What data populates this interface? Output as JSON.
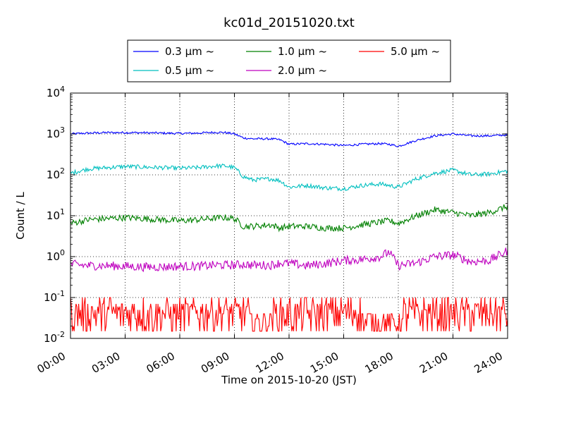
{
  "chart_data": {
    "type": "line",
    "title": "kc01d_20151020.txt",
    "xlabel": "Time on 2015-10-20 (JST)",
    "ylabel": "Count / L",
    "y_scale": "log",
    "xlim_hours": [
      0,
      24
    ],
    "ylim": [
      0.01,
      10000
    ],
    "x_tick_labels": [
      "00:00",
      "03:00",
      "06:00",
      "09:00",
      "12:00",
      "15:00",
      "18:00",
      "21:00",
      "24:00"
    ],
    "y_tick_labels": [
      {
        "base": "10",
        "exp": "-2"
      },
      {
        "base": "10",
        "exp": "-1"
      },
      {
        "base": "10",
        "exp": "0"
      },
      {
        "base": "10",
        "exp": "1"
      },
      {
        "base": "10",
        "exp": "2"
      },
      {
        "base": "10",
        "exp": "3"
      },
      {
        "base": "10",
        "exp": "4"
      }
    ],
    "grid": true,
    "legend_position": "top-center",
    "series": [
      {
        "name": "0.3 μm ~",
        "color": "#0000ff",
        "hours": [
          0,
          1,
          2,
          3,
          4,
          5,
          6,
          7,
          8,
          8.5,
          9,
          9.5,
          10,
          11,
          11.5,
          12,
          13,
          14,
          15,
          16,
          17,
          17.5,
          18,
          19,
          20,
          21,
          22,
          23,
          24
        ],
        "values": [
          1000,
          1050,
          1080,
          1080,
          1070,
          1050,
          1030,
          1050,
          1100,
          1080,
          1000,
          800,
          760,
          760,
          720,
          560,
          580,
          560,
          520,
          560,
          580,
          560,
          500,
          700,
          900,
          1000,
          900,
          900,
          950
        ]
      },
      {
        "name": "0.5 μm ~",
        "color": "#00bfbf",
        "hours": [
          0,
          1,
          2,
          3,
          4,
          5,
          6,
          7,
          8,
          8.5,
          9,
          9.5,
          10,
          11,
          11.5,
          12,
          13,
          14,
          15,
          16,
          17,
          17.5,
          18,
          19,
          20,
          21,
          22,
          23,
          24
        ],
        "values": [
          110,
          140,
          150,
          160,
          155,
          150,
          145,
          150,
          165,
          165,
          150,
          90,
          75,
          80,
          72,
          50,
          55,
          48,
          46,
          55,
          60,
          55,
          50,
          80,
          110,
          130,
          100,
          105,
          125
        ]
      },
      {
        "name": "1.0 μm ~",
        "color": "#008000",
        "hours": [
          0,
          1,
          2,
          3,
          4,
          5,
          6,
          7,
          8,
          8.5,
          9,
          9.5,
          10,
          11,
          11.5,
          12,
          13,
          14,
          15,
          16,
          17,
          17.5,
          18,
          19,
          20,
          21,
          22,
          23,
          24
        ],
        "values": [
          6.5,
          8,
          8.5,
          9,
          8.5,
          8,
          7.5,
          8,
          8.8,
          9,
          8.5,
          5.5,
          5.5,
          6,
          5,
          5.5,
          5.5,
          5,
          5,
          6,
          7,
          7.5,
          6.5,
          10,
          14,
          12,
          10,
          12,
          17
        ]
      },
      {
        "name": "2.0 μm ~",
        "color": "#bf00bf",
        "hours": [
          0,
          1,
          2,
          3,
          4,
          5,
          6,
          7,
          8,
          8.5,
          9,
          9.5,
          10,
          11,
          11.5,
          12,
          13,
          14,
          15,
          16,
          17,
          17.5,
          18,
          19,
          20,
          21,
          22,
          23,
          24
        ],
        "values": [
          0.65,
          0.6,
          0.6,
          0.58,
          0.56,
          0.56,
          0.58,
          0.58,
          0.62,
          0.62,
          0.62,
          0.65,
          0.62,
          0.62,
          0.7,
          0.68,
          0.6,
          0.68,
          0.8,
          0.85,
          1.0,
          1.3,
          0.6,
          0.7,
          1.0,
          1.1,
          0.75,
          0.8,
          1.4
        ]
      },
      {
        "name": "5.0 μm ~",
        "color": "#ff0000",
        "hours": [
          0,
          0.75,
          1.5,
          2.25,
          3,
          3.75,
          4.5,
          5.25,
          6,
          6.75,
          7.5,
          8.25,
          9,
          9.75,
          10.5,
          11.25,
          12,
          12.75,
          13.5,
          14.25,
          15,
          15.75,
          16.5,
          17.25,
          18,
          18.75,
          19.5,
          20.25,
          21,
          21.75,
          22.5,
          23.25,
          24
        ],
        "values": [
          0.03,
          0.02,
          0.04,
          0.02,
          0.05,
          0.03,
          0.06,
          0.02,
          0.03,
          0.05,
          0.02,
          0.04,
          0.03,
          0.02,
          0.05,
          0.03,
          0.04,
          0.02,
          0.05,
          0.03,
          0.02,
          0.04,
          0.03,
          0.06,
          0.05,
          0.02,
          0.04,
          0.03,
          0.05,
          0.02,
          0.04,
          0.03,
          0.04
        ]
      }
    ]
  }
}
